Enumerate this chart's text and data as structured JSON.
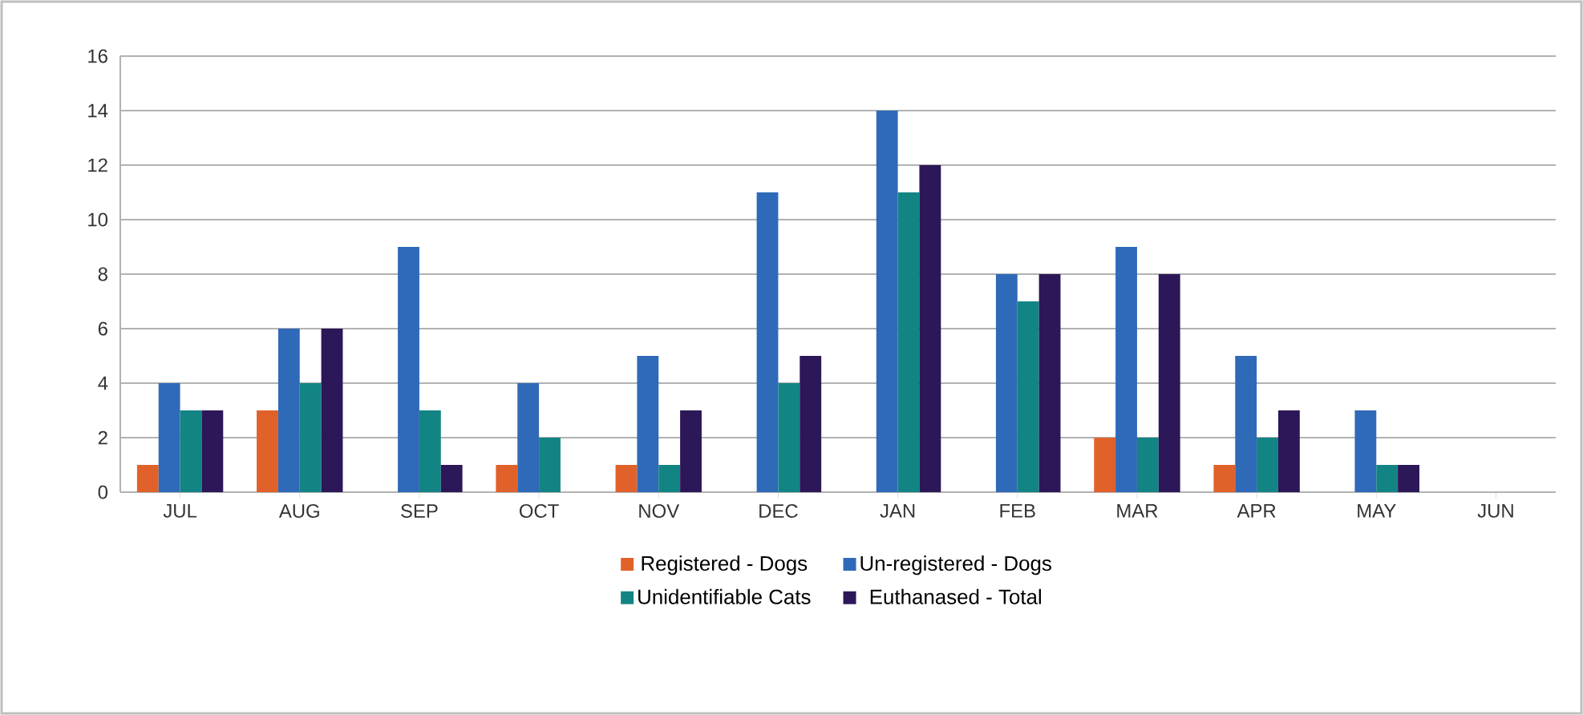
{
  "chart_data": {
    "type": "bar",
    "categories": [
      "JUL",
      "AUG",
      "SEP",
      "OCT",
      "NOV",
      "DEC",
      "JAN",
      "FEB",
      "MAR",
      "APR",
      "MAY",
      "JUN"
    ],
    "series": [
      {
        "name": "Registered - Dogs",
        "color": "#e0622a",
        "values": [
          1,
          3,
          0,
          1,
          1,
          0,
          0,
          0,
          2,
          1,
          0,
          0
        ]
      },
      {
        "name": "Un-registered - Dogs",
        "color": "#2f6ab8",
        "values": [
          4,
          6,
          9,
          4,
          5,
          11,
          14,
          8,
          9,
          5,
          3,
          0
        ]
      },
      {
        "name": "Unidentifiable Cats",
        "color": "#138484",
        "values": [
          3,
          4,
          3,
          2,
          1,
          4,
          11,
          7,
          2,
          2,
          1,
          0
        ]
      },
      {
        "name": "Euthanased - Total",
        "color": "#2c1758",
        "values": [
          3,
          6,
          1,
          0,
          3,
          5,
          12,
          8,
          8,
          3,
          1,
          0
        ]
      }
    ],
    "ylim": [
      0,
      16
    ],
    "yticks": [
      0,
      2,
      4,
      6,
      8,
      10,
      12,
      14,
      16
    ],
    "grid": "y",
    "legend": "bottom"
  }
}
